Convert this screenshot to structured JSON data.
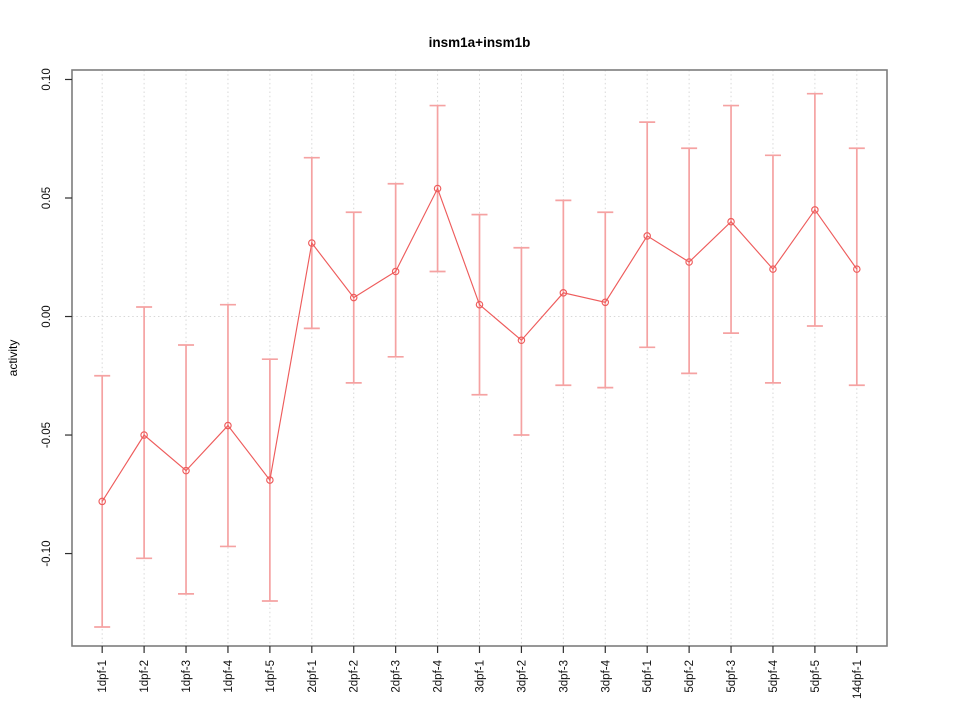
{
  "page": {
    "background": "#ffffff"
  },
  "chart_data": {
    "type": "line",
    "title": "insm1a+insm1b",
    "xlabel": "",
    "ylabel": "activity",
    "legend_position": "none",
    "grid": {
      "vertical_dotted_per_category": true,
      "horizontal_dotted_zero_line": true
    },
    "categories": [
      "1dpf-1",
      "1dpf-2",
      "1dpf-3",
      "1dpf-4",
      "1dpf-5",
      "2dpf-1",
      "2dpf-2",
      "2dpf-3",
      "2dpf-4",
      "3dpf-1",
      "3dpf-2",
      "3dpf-3",
      "3dpf-4",
      "5dpf-1",
      "5dpf-2",
      "5dpf-3",
      "5dpf-4",
      "5dpf-5",
      "14dpf-1"
    ],
    "series": [
      {
        "name": "activity mean with error bars",
        "marker": "open-circle",
        "values": [
          -0.078,
          -0.05,
          -0.065,
          -0.046,
          -0.069,
          0.031,
          0.008,
          0.019,
          0.054,
          0.005,
          -0.01,
          0.01,
          0.006,
          0.034,
          0.023,
          0.04,
          0.02,
          0.045,
          0.02
        ],
        "error_upper": [
          -0.025,
          0.004,
          -0.012,
          0.005,
          -0.018,
          0.067,
          0.044,
          0.056,
          0.089,
          0.043,
          0.029,
          0.049,
          0.044,
          0.082,
          0.071,
          0.089,
          0.068,
          0.094,
          0.071
        ],
        "error_lower": [
          -0.131,
          -0.102,
          -0.117,
          -0.097,
          -0.12,
          -0.005,
          -0.028,
          -0.017,
          0.019,
          -0.033,
          -0.05,
          -0.029,
          -0.03,
          -0.013,
          -0.024,
          -0.007,
          -0.028,
          -0.004,
          -0.029
        ]
      }
    ],
    "ylim": [
      -0.139,
      0.104
    ],
    "yticks": [
      -0.1,
      -0.05,
      0.0,
      0.05,
      0.1
    ],
    "ytick_labels": [
      "-0.10",
      "-0.05",
      "0.00",
      "0.05",
      "0.10"
    ],
    "colors": {
      "line": "#ee5c5c",
      "marker": "#ee5c5c",
      "error_bar": "#f5a2a2",
      "grid": "#d8d8d8",
      "box": "#7d7d7d",
      "tick": "#2e2e2e",
      "text": "#000000"
    }
  }
}
